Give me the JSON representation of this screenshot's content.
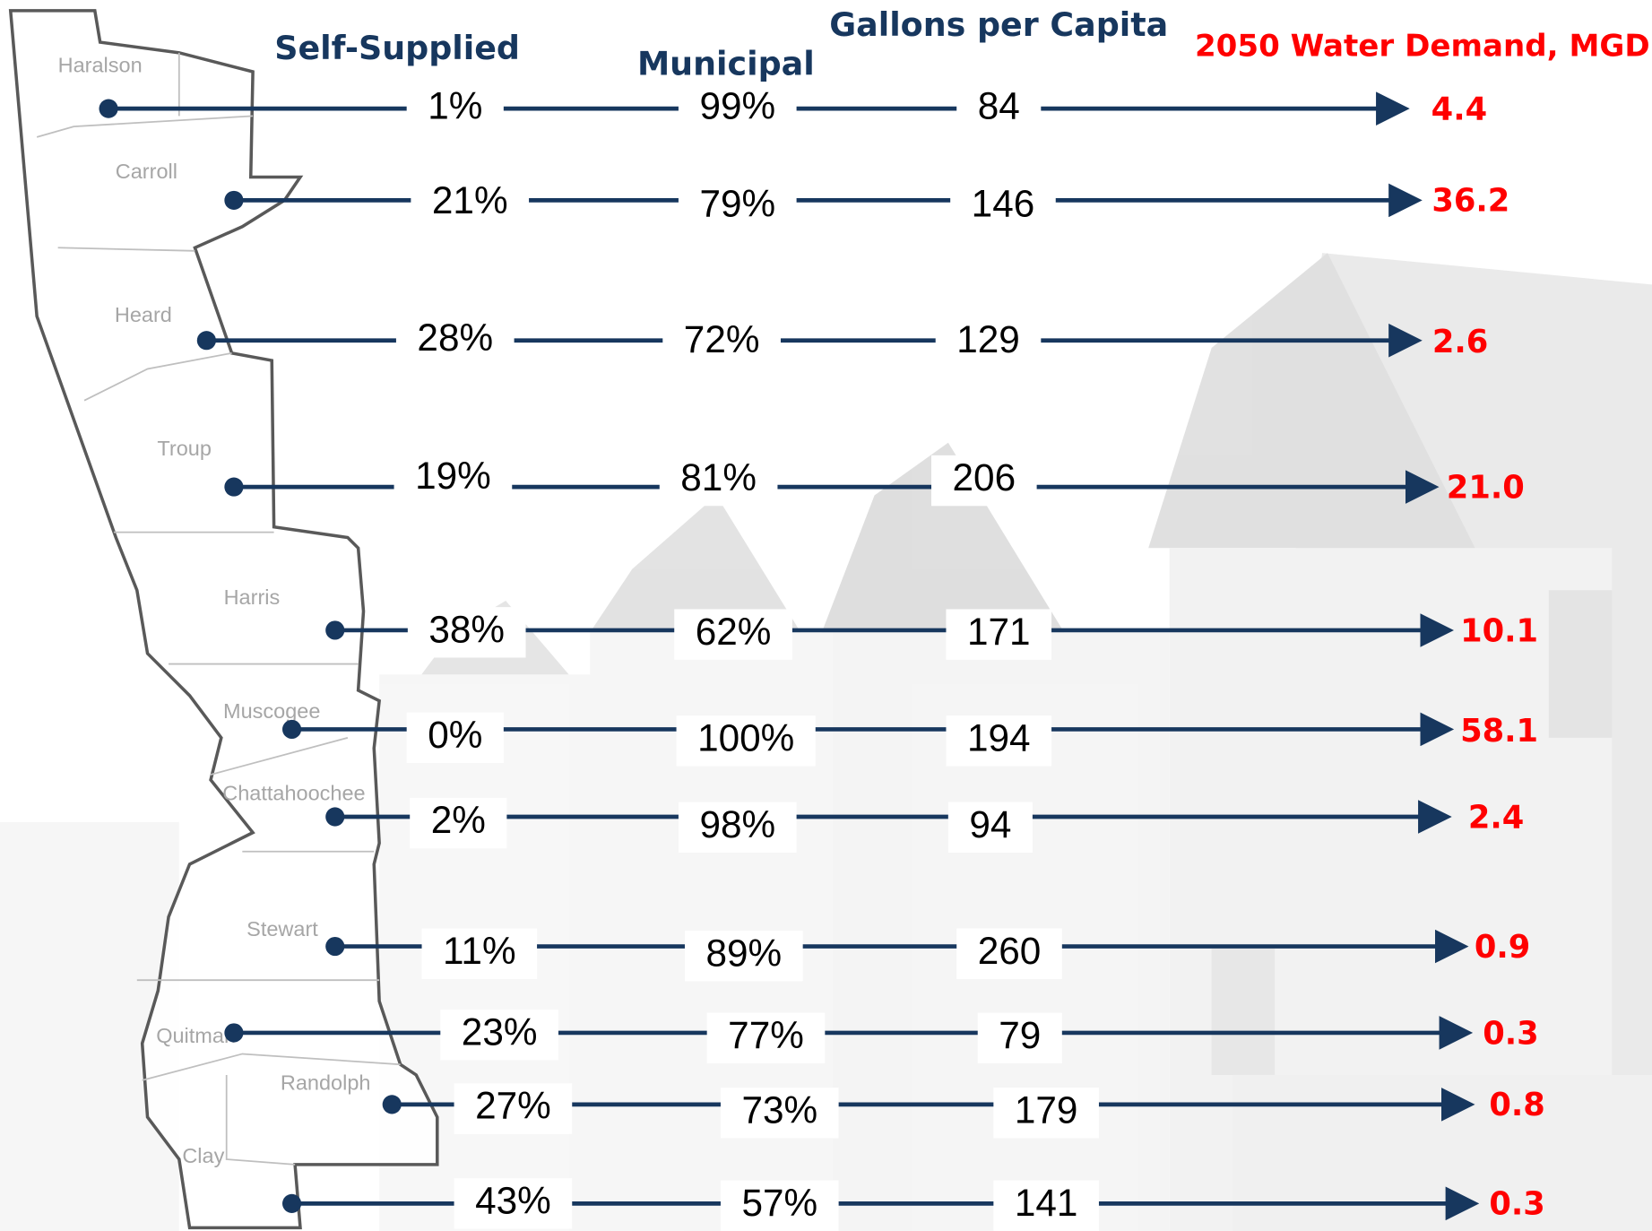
{
  "headers": {
    "self_supplied": "Self-Supplied",
    "municipal": "Municipal",
    "gallons_per_capita": "Gallons per Capita",
    "demand_2050": "2050 Water Demand, MGD"
  },
  "rows": [
    {
      "county": "Haralson",
      "self_supplied": "1%",
      "municipal": "99%",
      "gallons_per_capita": "84",
      "demand_2050": "4.4"
    },
    {
      "county": "Carroll",
      "self_supplied": "21%",
      "municipal": "79%",
      "gallons_per_capita": "146",
      "demand_2050": "36.2"
    },
    {
      "county": "Heard",
      "self_supplied": "28%",
      "municipal": "72%",
      "gallons_per_capita": "129",
      "demand_2050": "2.6"
    },
    {
      "county": "Troup",
      "self_supplied": "19%",
      "municipal": "81%",
      "gallons_per_capita": "206",
      "demand_2050": "21.0"
    },
    {
      "county": "Harris",
      "self_supplied": "38%",
      "municipal": "62%",
      "gallons_per_capita": "171",
      "demand_2050": "10.1"
    },
    {
      "county": "Muscogee",
      "self_supplied": "0%",
      "municipal": "100%",
      "gallons_per_capita": "194",
      "demand_2050": "58.1"
    },
    {
      "county": "Chattahoochee",
      "self_supplied": "2%",
      "municipal": "98%",
      "gallons_per_capita": "94",
      "demand_2050": "2.4"
    },
    {
      "county": "Stewart",
      "self_supplied": "11%",
      "municipal": "89%",
      "gallons_per_capita": "260",
      "demand_2050": "0.9"
    },
    {
      "county": "Quitman",
      "self_supplied": "23%",
      "municipal": "77%",
      "gallons_per_capita": "79",
      "demand_2050": "0.3"
    },
    {
      "county": "Randolph",
      "self_supplied": "27%",
      "municipal": "73%",
      "gallons_per_capita": "179",
      "demand_2050": "0.8"
    },
    {
      "county": "Clay",
      "self_supplied": "43%",
      "municipal": "57%",
      "gallons_per_capita": "141",
      "demand_2050": "0.3"
    }
  ]
}
